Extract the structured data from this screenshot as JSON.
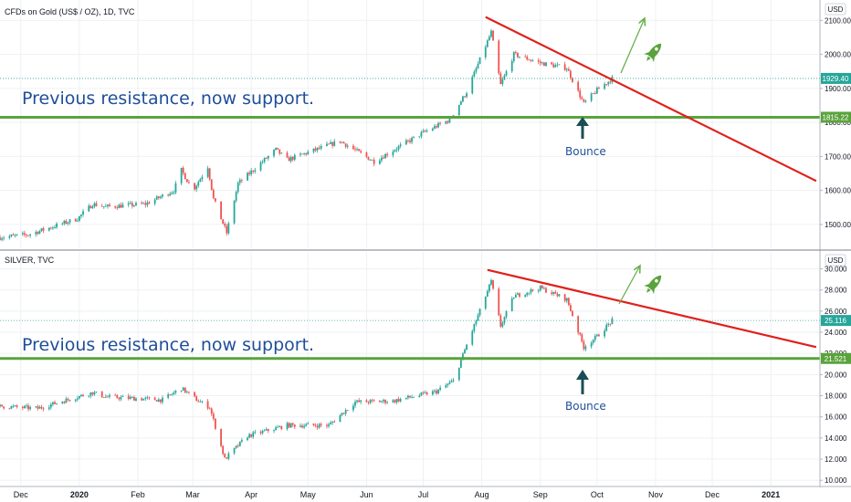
{
  "chart_data": [
    {
      "type": "candlestick",
      "title": "CFDs on Gold (US$ / OZ), 1D, TVC",
      "currency": "USD",
      "y_ticks": [
        "2100.00",
        "2000.00",
        "1900.00",
        "1800.00",
        "1700.00",
        "1600.00",
        "1500.00"
      ],
      "y_tick_values": [
        2100,
        2000,
        1900,
        1800,
        1700,
        1600,
        1500
      ],
      "ylim": [
        1430,
        2160
      ],
      "last_price": "1929.40",
      "support_level": "1815.22",
      "support_value": 1815.22,
      "annotation": "Previous resistance, now support.",
      "bounce_label": "Bounce",
      "trendline": {
        "from": {
          "date": "2020-08-03",
          "value": 2110
        },
        "to": {
          "date": "2021-01-25",
          "value": 1628
        }
      },
      "anchors": [
        [
          "2019-11-20",
          1462
        ],
        [
          "2019-12-05",
          1470
        ],
        [
          "2019-12-31",
          1517
        ],
        [
          "2020-01-08",
          1560
        ],
        [
          "2020-01-15",
          1552
        ],
        [
          "2020-02-05",
          1560
        ],
        [
          "2020-02-20",
          1600
        ],
        [
          "2020-02-24",
          1660
        ],
        [
          "2020-03-01",
          1600
        ],
        [
          "2020-03-09",
          1670
        ],
        [
          "2020-03-12",
          1575
        ],
        [
          "2020-03-19",
          1475
        ],
        [
          "2020-03-25",
          1620
        ],
        [
          "2020-04-14",
          1720
        ],
        [
          "2020-04-20",
          1690
        ],
        [
          "2020-05-18",
          1745
        ],
        [
          "2020-06-05",
          1685
        ],
        [
          "2020-07-01",
          1770
        ],
        [
          "2020-07-15",
          1808
        ],
        [
          "2020-07-24",
          1890
        ],
        [
          "2020-08-06",
          2065
        ],
        [
          "2020-08-11",
          1910
        ],
        [
          "2020-08-18",
          2000
        ],
        [
          "2020-09-01",
          1975
        ],
        [
          "2020-09-15",
          1960
        ],
        [
          "2020-09-24",
          1855
        ],
        [
          "2020-10-01",
          1895
        ],
        [
          "2020-10-09",
          1929
        ]
      ]
    },
    {
      "type": "candlestick",
      "title": "SILVER, TVC",
      "currency": "USD",
      "y_ticks": [
        "30.000",
        "28.000",
        "26.000",
        "24.000",
        "22.000",
        "20.000",
        "18.000",
        "16.000",
        "14.000",
        "12.000",
        "10.000"
      ],
      "y_tick_values": [
        30,
        28,
        26,
        24,
        22,
        20,
        18,
        16,
        14,
        12,
        10
      ],
      "ylim": [
        9.5,
        31.6
      ],
      "last_price": "25.116",
      "support_level": "21.521",
      "support_value": 21.521,
      "annotation": "Previous resistance, now support.",
      "bounce_label": "Bounce",
      "trendline": {
        "from": {
          "date": "2020-08-04",
          "value": 29.9
        },
        "to": {
          "date": "2021-01-25",
          "value": 22.6
        }
      },
      "anchors": [
        [
          "2019-11-20",
          17.0
        ],
        [
          "2019-12-10",
          16.8
        ],
        [
          "2020-01-08",
          18.3
        ],
        [
          "2020-01-15",
          17.9
        ],
        [
          "2020-02-14",
          17.6
        ],
        [
          "2020-02-24",
          18.7
        ],
        [
          "2020-03-04",
          17.5
        ],
        [
          "2020-03-10",
          16.9
        ],
        [
          "2020-03-18",
          12.0
        ],
        [
          "2020-03-30",
          14.2
        ],
        [
          "2020-04-20",
          15.2
        ],
        [
          "2020-05-12",
          15.2
        ],
        [
          "2020-05-26",
          17.4
        ],
        [
          "2020-06-15",
          17.5
        ],
        [
          "2020-07-08",
          18.4
        ],
        [
          "2020-07-17",
          19.4
        ],
        [
          "2020-07-24",
          22.8
        ],
        [
          "2020-08-06",
          28.8
        ],
        [
          "2020-08-11",
          24.6
        ],
        [
          "2020-08-18",
          27.4
        ],
        [
          "2020-09-01",
          28.2
        ],
        [
          "2020-09-15",
          27.1
        ],
        [
          "2020-09-24",
          22.6
        ],
        [
          "2020-10-01",
          23.6
        ],
        [
          "2020-10-09",
          25.1
        ]
      ]
    }
  ],
  "x_axis": {
    "labels": [
      {
        "text": "Dec",
        "date": "2019-12-01",
        "bold": false
      },
      {
        "text": "2020",
        "date": "2020-01-01",
        "bold": true
      },
      {
        "text": "Feb",
        "date": "2020-02-01",
        "bold": false
      },
      {
        "text": "Mar",
        "date": "2020-03-01",
        "bold": false
      },
      {
        "text": "Apr",
        "date": "2020-04-01",
        "bold": false
      },
      {
        "text": "May",
        "date": "2020-05-01",
        "bold": false
      },
      {
        "text": "Jun",
        "date": "2020-06-01",
        "bold": false
      },
      {
        "text": "Jul",
        "date": "2020-07-01",
        "bold": false
      },
      {
        "text": "Aug",
        "date": "2020-08-01",
        "bold": false
      },
      {
        "text": "Sep",
        "date": "2020-09-01",
        "bold": false
      },
      {
        "text": "Oct",
        "date": "2020-10-01",
        "bold": false
      },
      {
        "text": "Nov",
        "date": "2020-11-01",
        "bold": false
      },
      {
        "text": "Dec",
        "date": "2020-12-01",
        "bold": false
      },
      {
        "text": "2021",
        "date": "2021-01-01",
        "bold": true
      }
    ],
    "start_date": "2019-11-20",
    "end_date": "2021-01-27"
  },
  "colors": {
    "up": "#26a69a",
    "down": "#ef5350",
    "support": "#5aa33c",
    "trend": "#e0201b",
    "price_badge": "#26a69a",
    "annotation": "#1f4e9a",
    "arrow_dark": "#1a4d55",
    "projection": "#6ab04c",
    "grid": "#eef0f3"
  },
  "icons": {
    "rocket": "rocket-icon",
    "up_arrow": "up-arrow-icon",
    "projection_arrow": "projection-arrow-icon"
  }
}
